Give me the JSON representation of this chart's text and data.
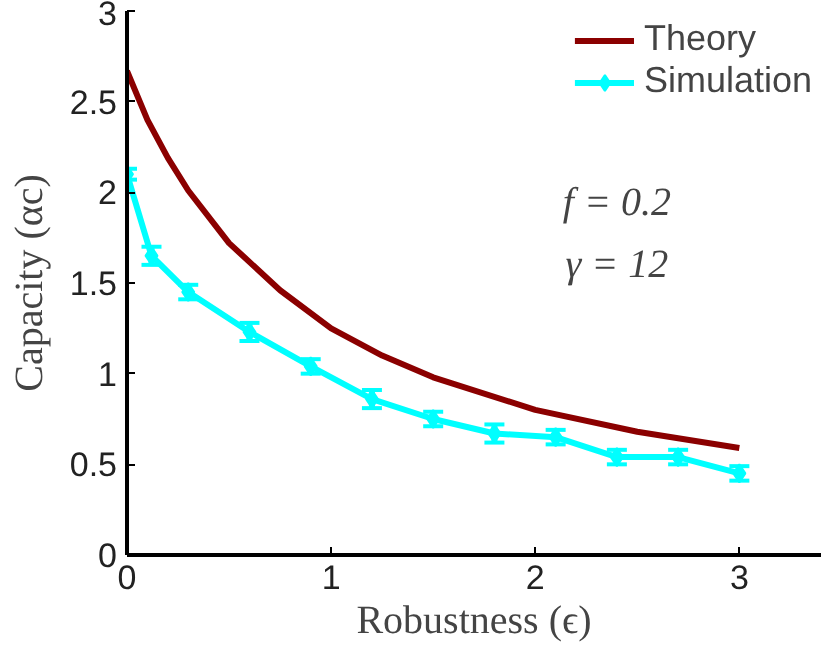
{
  "chart_data": {
    "type": "line",
    "xlabel": "Robustness (ϵ)",
    "ylabel": "Capacity (αc)",
    "xlim": [
      0,
      3.4
    ],
    "ylim": [
      0,
      3
    ],
    "xticks": [
      0,
      1,
      2,
      3
    ],
    "yticks": [
      0,
      0.5,
      1,
      1.5,
      2,
      2.5,
      3
    ],
    "grid": false,
    "legend": "top right",
    "annotations": [
      "f = 0.2",
      "γ = 12"
    ],
    "series": [
      {
        "name": "Theory",
        "color": "#8b0000",
        "marker": "none",
        "x": [
          0,
          0.1,
          0.2,
          0.3,
          0.5,
          0.75,
          1,
          1.25,
          1.5,
          2,
          2.5,
          3
        ],
        "values": [
          2.67,
          2.4,
          2.19,
          2.01,
          1.72,
          1.46,
          1.25,
          1.1,
          0.98,
          0.8,
          0.68,
          0.59
        ]
      },
      {
        "name": "Simulation",
        "color": "#00ffff",
        "marker": "diamond",
        "x": [
          0,
          0.12,
          0.3,
          0.6,
          0.9,
          1.2,
          1.5,
          1.8,
          2.1,
          2.4,
          2.7,
          3.0
        ],
        "values": [
          2.1,
          1.65,
          1.45,
          1.23,
          1.04,
          0.86,
          0.75,
          0.67,
          0.65,
          0.54,
          0.54,
          0.45
        ],
        "errors": [
          0.03,
          0.05,
          0.04,
          0.05,
          0.04,
          0.05,
          0.04,
          0.05,
          0.04,
          0.04,
          0.04,
          0.04
        ]
      }
    ]
  }
}
